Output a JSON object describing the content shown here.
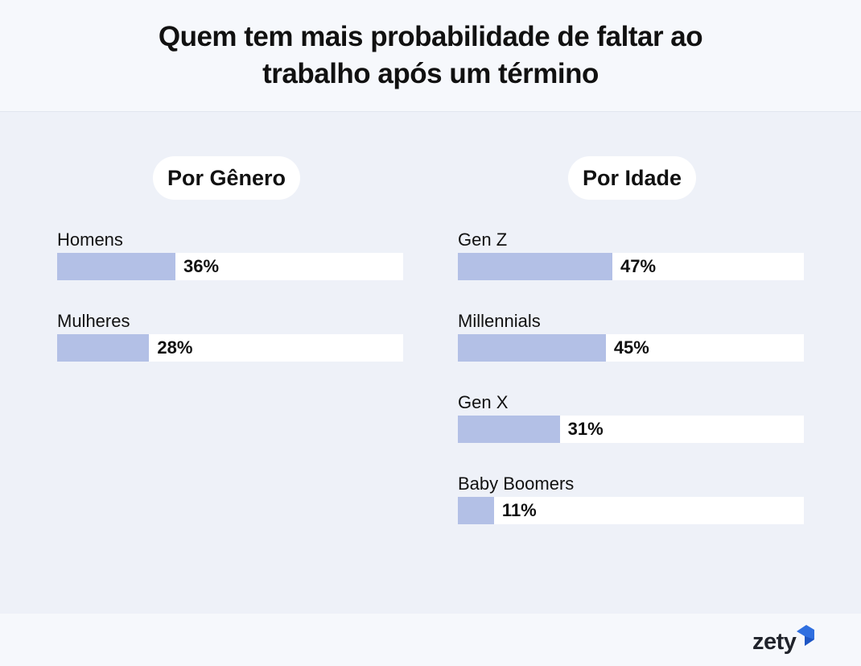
{
  "header": {
    "title": "Quem tem mais probabilidade de faltar ao trabalho após um término"
  },
  "panels": [
    {
      "heading": "Por Gênero",
      "rows": [
        {
          "label": "Homens",
          "value": 36,
          "display": "36%"
        },
        {
          "label": "Mulheres",
          "value": 28,
          "display": "28%"
        }
      ]
    },
    {
      "heading": "Por Idade",
      "rows": [
        {
          "label": "Gen Z",
          "value": 47,
          "display": "47%"
        },
        {
          "label": "Millennials",
          "value": 45,
          "display": "45%"
        },
        {
          "label": "Gen X",
          "value": 31,
          "display": "31%"
        },
        {
          "label": "Baby Boomers",
          "value": 11,
          "display": "11%"
        }
      ]
    }
  ],
  "colors": {
    "bar": "#b3c0e6",
    "track": "#ffffff",
    "background": "#eef1f8",
    "logo_accent": "#2f6fe0"
  },
  "logo": {
    "text": "zety"
  },
  "chart_data": [
    {
      "type": "bar",
      "orientation": "horizontal",
      "title": "Quem tem mais probabilidade de faltar ao trabalho após um término",
      "subtitle": "Por Gênero",
      "categories": [
        "Homens",
        "Mulheres"
      ],
      "values": [
        36,
        28
      ],
      "unit": "%",
      "xlim": [
        0,
        100
      ]
    },
    {
      "type": "bar",
      "orientation": "horizontal",
      "title": "Quem tem mais probabilidade de faltar ao trabalho após um término",
      "subtitle": "Por Idade",
      "categories": [
        "Gen Z",
        "Millennials",
        "Gen X",
        "Baby Boomers"
      ],
      "values": [
        47,
        45,
        31,
        11
      ],
      "unit": "%",
      "xlim": [
        0,
        100
      ]
    }
  ]
}
